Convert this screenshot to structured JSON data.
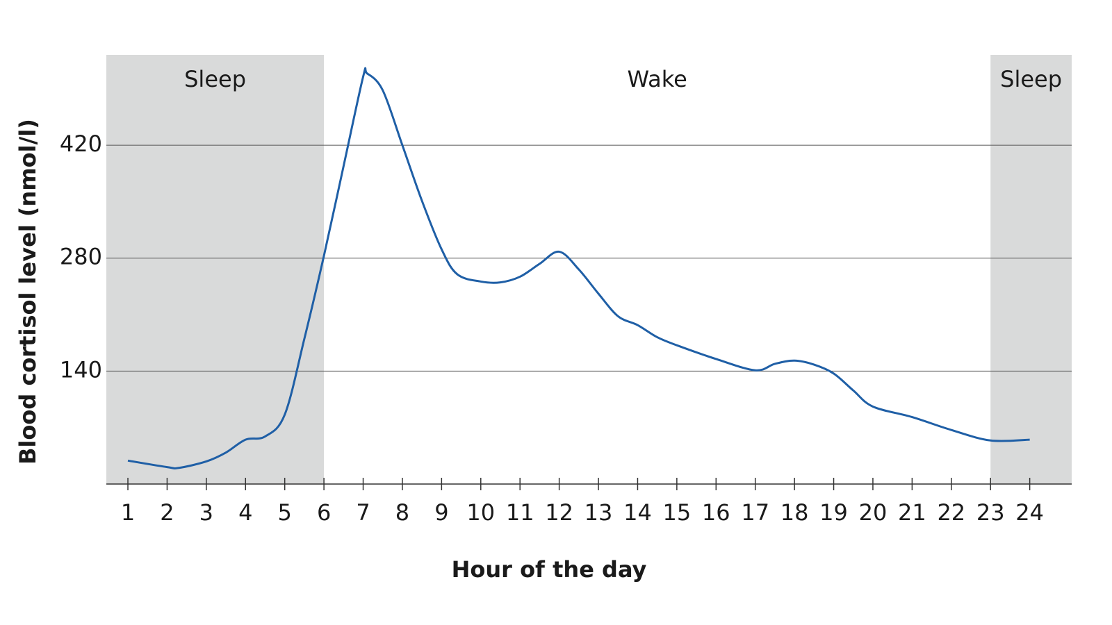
{
  "chart_data": {
    "type": "line",
    "xlabel": "Hour of the day",
    "ylabel": "Blood cortisol level (nmol/l)",
    "x": [
      1,
      2,
      2.3,
      3,
      3.5,
      4,
      4.5,
      5,
      5.5,
      6,
      6.5,
      7,
      7.1,
      7.5,
      8,
      8.5,
      9,
      9.4,
      10,
      10.5,
      11,
      11.5,
      12,
      12.5,
      13,
      13.5,
      14,
      14.5,
      15,
      16,
      17,
      17.5,
      18,
      18.5,
      19,
      19.5,
      20,
      21,
      22,
      23,
      24
    ],
    "series": [
      {
        "color": "#1f5fa6",
        "values": [
          29,
          21,
          20,
          28,
          39,
          55,
          59,
          86,
          180,
          283,
          394,
          505,
          509,
          488,
          420,
          351,
          291,
          260,
          251,
          250,
          257,
          273,
          288,
          266,
          236,
          208,
          197,
          182,
          172,
          155,
          141,
          149,
          153,
          148,
          137,
          116,
          96,
          83,
          67,
          54,
          55
        ]
      }
    ],
    "xlim": [
      0.45,
      25.07
    ],
    "xticks": [
      1,
      2,
      3,
      4,
      5,
      6,
      7,
      8,
      9,
      10,
      11,
      12,
      13,
      14,
      15,
      16,
      17,
      18,
      19,
      20,
      21,
      22,
      23,
      24
    ],
    "ylim": [
      0,
      532
    ],
    "yticks": [
      140,
      280,
      420
    ],
    "grid": true,
    "bands": [
      {
        "label": "Sleep",
        "from": 0.45,
        "to": 6,
        "color": "#d9dada"
      },
      {
        "label": "Wake",
        "from": 6,
        "to": 23,
        "color": "#ffffff"
      },
      {
        "label": "Sleep",
        "from": 23,
        "to": 25.07,
        "color": "#d9dada"
      }
    ]
  }
}
